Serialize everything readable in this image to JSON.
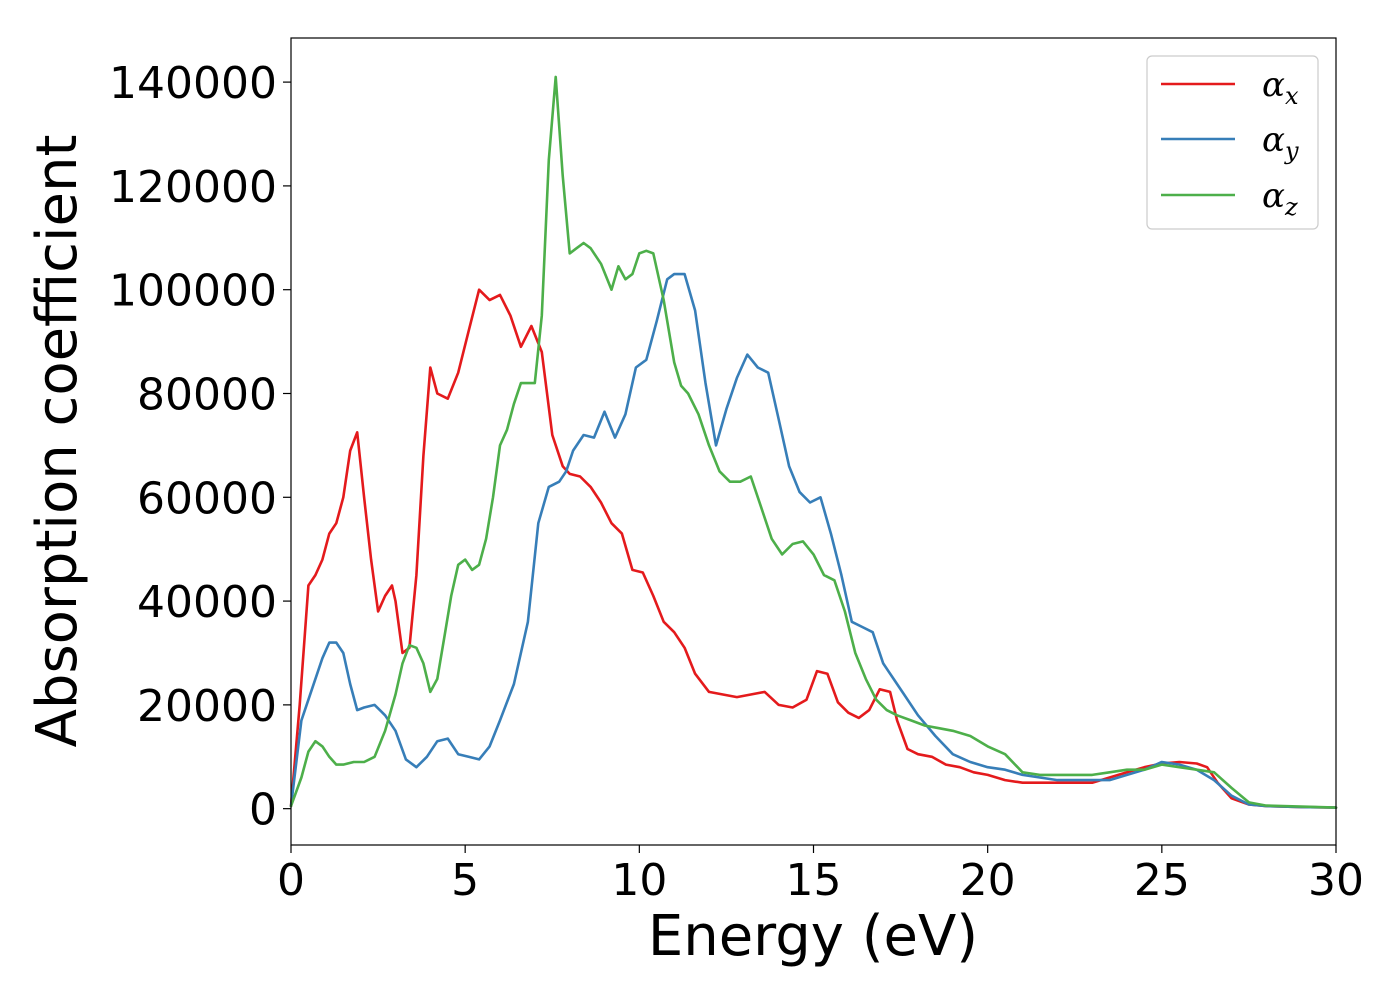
{
  "chart_data": {
    "type": "line",
    "xlabel": "Energy (eV)",
    "ylabel": "Absorption coefficient",
    "xlim": [
      0,
      30
    ],
    "ylim": [
      -7000,
      148500
    ],
    "x_ticks": [
      "0",
      "5",
      "10",
      "15",
      "20",
      "25",
      "30"
    ],
    "y_ticks": [
      "0",
      "20000",
      "40000",
      "60000",
      "80000",
      "100000",
      "120000",
      "140000"
    ],
    "grid": false,
    "legend_position": "top-right",
    "series": [
      {
        "name": "α",
        "subscript": "x",
        "color": "#e41a1c",
        "x": [
          0,
          0.25,
          0.5,
          0.7,
          0.9,
          1.1,
          1.3,
          1.5,
          1.7,
          1.9,
          2.1,
          2.3,
          2.5,
          2.7,
          2.9,
          3.0,
          3.2,
          3.4,
          3.6,
          3.8,
          4.0,
          4.2,
          4.5,
          4.8,
          5.1,
          5.4,
          5.7,
          6.0,
          6.3,
          6.6,
          6.9,
          7.2,
          7.5,
          7.8,
          8.0,
          8.3,
          8.6,
          8.9,
          9.2,
          9.5,
          9.8,
          10.1,
          10.4,
          10.7,
          11.0,
          11.3,
          11.6,
          12.0,
          12.4,
          12.8,
          13.2,
          13.6,
          14.0,
          14.4,
          14.8,
          15.1,
          15.4,
          15.7,
          16.0,
          16.3,
          16.6,
          16.9,
          17.2,
          17.4,
          17.7,
          18.0,
          18.4,
          18.8,
          19.2,
          19.6,
          20.0,
          20.5,
          21.0,
          21.5,
          22.0,
          22.5,
          23.0,
          23.5,
          24.0,
          24.5,
          25.0,
          25.5,
          26.0,
          26.3,
          26.6,
          27.0,
          27.5,
          28.0,
          29.0,
          30.0
        ],
        "y": [
          500,
          20000,
          43000,
          45000,
          48000,
          53000,
          55000,
          60000,
          69000,
          72500,
          60000,
          48000,
          38000,
          41000,
          43000,
          40000,
          30000,
          31000,
          45000,
          68000,
          85000,
          80000,
          79000,
          84000,
          92000,
          100000,
          98000,
          99000,
          95000,
          89000,
          93000,
          88000,
          72000,
          66000,
          64500,
          64000,
          62000,
          59000,
          55000,
          53000,
          46000,
          45500,
          41000,
          36000,
          34000,
          31000,
          26000,
          22500,
          22000,
          21500,
          22000,
          22500,
          20000,
          19500,
          21000,
          26500,
          26000,
          20500,
          18500,
          17500,
          19000,
          23000,
          22500,
          17000,
          11500,
          10500,
          10000,
          8500,
          8000,
          7000,
          6500,
          5500,
          5000,
          5000,
          5000,
          5000,
          5000,
          6000,
          7000,
          8000,
          8700,
          9000,
          8700,
          8000,
          5000,
          2000,
          800,
          500,
          300,
          200
        ]
      },
      {
        "name": "α",
        "subscript": "y",
        "color": "#377eb8",
        "x": [
          0,
          0.3,
          0.6,
          0.9,
          1.1,
          1.3,
          1.5,
          1.7,
          1.9,
          2.1,
          2.4,
          2.7,
          3.0,
          3.3,
          3.6,
          3.9,
          4.2,
          4.5,
          4.8,
          5.1,
          5.4,
          5.7,
          6.0,
          6.4,
          6.8,
          7.1,
          7.4,
          7.7,
          7.9,
          8.1,
          8.4,
          8.7,
          9.0,
          9.3,
          9.6,
          9.9,
          10.2,
          10.5,
          10.8,
          11.0,
          11.3,
          11.6,
          11.9,
          12.2,
          12.5,
          12.8,
          13.1,
          13.4,
          13.7,
          14.0,
          14.3,
          14.6,
          14.9,
          15.2,
          15.5,
          15.8,
          16.1,
          16.4,
          16.7,
          17.0,
          17.3,
          17.6,
          18.0,
          18.5,
          19.0,
          19.5,
          20.0,
          20.5,
          21.0,
          21.5,
          22.0,
          22.5,
          23.0,
          23.5,
          24.0,
          24.5,
          25.0,
          25.5,
          26.0,
          26.5,
          27.0,
          27.5,
          28.0,
          29.0,
          30.0
        ],
        "y": [
          500,
          17000,
          23000,
          29000,
          32000,
          32000,
          30000,
          24000,
          19000,
          19500,
          20000,
          18000,
          15000,
          9500,
          8000,
          10000,
          13000,
          13500,
          10500,
          10000,
          9500,
          12000,
          17000,
          24000,
          36000,
          55000,
          62000,
          63000,
          65000,
          69000,
          72000,
          71500,
          76500,
          71500,
          76000,
          85000,
          86500,
          94000,
          102000,
          103000,
          103000,
          96000,
          82000,
          70000,
          77000,
          83000,
          87500,
          85000,
          84000,
          75000,
          66000,
          61000,
          59000,
          60000,
          53000,
          45000,
          36000,
          35000,
          34000,
          28000,
          25000,
          22000,
          18000,
          14000,
          10500,
          9000,
          8000,
          7500,
          6500,
          6000,
          5500,
          5500,
          5500,
          5500,
          6500,
          7500,
          9000,
          8500,
          7500,
          5500,
          2500,
          800,
          500,
          300,
          200
        ]
      },
      {
        "name": "α",
        "subscript": "z",
        "color": "#4daf4a",
        "x": [
          0,
          0.3,
          0.5,
          0.7,
          0.9,
          1.1,
          1.3,
          1.5,
          1.8,
          2.1,
          2.4,
          2.7,
          3.0,
          3.2,
          3.4,
          3.6,
          3.8,
          4.0,
          4.2,
          4.4,
          4.6,
          4.8,
          5.0,
          5.2,
          5.4,
          5.6,
          5.8,
          6.0,
          6.2,
          6.4,
          6.6,
          6.8,
          7.0,
          7.2,
          7.4,
          7.6,
          7.8,
          8.0,
          8.2,
          8.4,
          8.6,
          8.9,
          9.2,
          9.4,
          9.6,
          9.8,
          10.0,
          10.2,
          10.4,
          10.7,
          11.0,
          11.2,
          11.4,
          11.7,
          12.0,
          12.3,
          12.6,
          12.9,
          13.2,
          13.5,
          13.8,
          14.1,
          14.4,
          14.7,
          15.0,
          15.3,
          15.6,
          15.9,
          16.2,
          16.5,
          16.8,
          17.1,
          17.4,
          17.8,
          18.2,
          18.6,
          19.0,
          19.5,
          20.0,
          20.5,
          21.0,
          21.5,
          22.0,
          22.5,
          23.0,
          23.5,
          24.0,
          24.5,
          25.0,
          25.5,
          26.0,
          26.5,
          27.0,
          27.5,
          28.0,
          29.0,
          30.0
        ],
        "y": [
          500,
          6000,
          11000,
          13000,
          12000,
          10000,
          8500,
          8500,
          9000,
          9000,
          10000,
          15000,
          22000,
          28000,
          31500,
          31000,
          28000,
          22500,
          25000,
          33000,
          41000,
          47000,
          48000,
          46000,
          47000,
          52000,
          60000,
          70000,
          73000,
          78000,
          82000,
          82000,
          82000,
          95000,
          125000,
          141000,
          122000,
          107000,
          108000,
          109000,
          108000,
          105000,
          100000,
          104500,
          102000,
          103000,
          107000,
          107500,
          107000,
          98000,
          86000,
          81500,
          80000,
          76000,
          70000,
          65000,
          63000,
          63000,
          64000,
          58000,
          52000,
          49000,
          51000,
          51500,
          49000,
          45000,
          44000,
          38000,
          30000,
          25000,
          21000,
          19000,
          18000,
          17000,
          16000,
          15500,
          15000,
          14000,
          12000,
          10500,
          7000,
          6500,
          6500,
          6500,
          6500,
          7000,
          7500,
          7500,
          8500,
          8000,
          7500,
          7000,
          4000,
          1200,
          600,
          400,
          200
        ]
      }
    ]
  }
}
